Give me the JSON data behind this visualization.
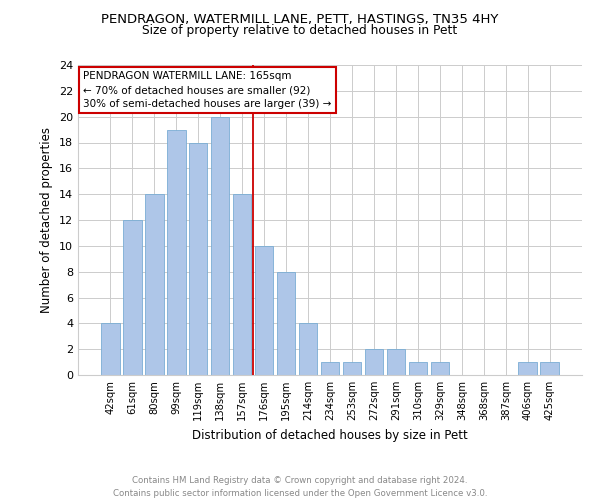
{
  "title": "PENDRAGON, WATERMILL LANE, PETT, HASTINGS, TN35 4HY",
  "subtitle": "Size of property relative to detached houses in Pett",
  "xlabel": "Distribution of detached houses by size in Pett",
  "ylabel": "Number of detached properties",
  "categories": [
    "42sqm",
    "61sqm",
    "80sqm",
    "99sqm",
    "119sqm",
    "138sqm",
    "157sqm",
    "176sqm",
    "195sqm",
    "214sqm",
    "234sqm",
    "253sqm",
    "272sqm",
    "291sqm",
    "310sqm",
    "329sqm",
    "348sqm",
    "368sqm",
    "387sqm",
    "406sqm",
    "425sqm"
  ],
  "values": [
    4,
    12,
    14,
    19,
    18,
    20,
    14,
    10,
    8,
    4,
    1,
    1,
    2,
    2,
    1,
    1,
    0,
    0,
    0,
    1,
    1
  ],
  "bar_color": "#aec6e8",
  "bar_edge_color": "#7aadd4",
  "vline_x": 6.5,
  "vline_color": "#cc0000",
  "annotation_title": "PENDRAGON WATERMILL LANE: 165sqm",
  "annotation_line2": "← 70% of detached houses are smaller (92)",
  "annotation_line3": "30% of semi-detached houses are larger (39) →",
  "annotation_box_edge": "#cc0000",
  "ylim": [
    0,
    24
  ],
  "yticks": [
    0,
    2,
    4,
    6,
    8,
    10,
    12,
    14,
    16,
    18,
    20,
    22,
    24
  ],
  "grid_color": "#cccccc",
  "background_color": "#ffffff",
  "footnote": "Contains HM Land Registry data © Crown copyright and database right 2024.\nContains public sector information licensed under the Open Government Licence v3.0.",
  "footnote_color": "#888888"
}
